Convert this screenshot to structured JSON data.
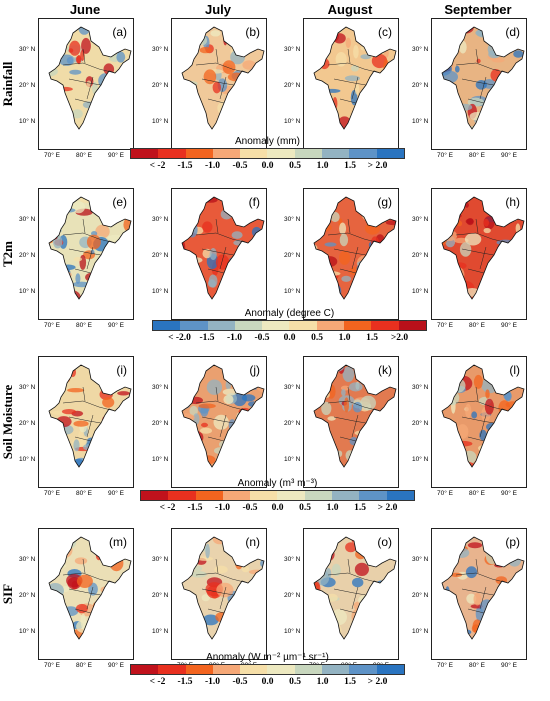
{
  "columns": [
    "June",
    "July",
    "August",
    "September"
  ],
  "rows": [
    {
      "label": "Rainfall",
      "panels": [
        "(a)",
        "(b)",
        "(c)",
        "(d)"
      ],
      "anomaly": "Anomaly (mm)",
      "palette": [
        "#c0121c",
        "#e8301f",
        "#f3641f",
        "#f6a877",
        "#f6dfa8",
        "#ede9c0",
        "#c8d7be",
        "#93b3c2",
        "#5e93c7",
        "#2a74c0"
      ],
      "ticks": [
        "< -2",
        "-1.5",
        "-1.0",
        "-0.5",
        "0.0",
        "0.5",
        "1.0",
        "1.5",
        "> 2.0"
      ]
    },
    {
      "label": "T2m",
      "panels": [
        "(e)",
        "(f)",
        "(g)",
        "(h)"
      ],
      "anomaly": "Anomaly (degree C)",
      "palette": [
        "#2a74c0",
        "#5e93c7",
        "#93b3c2",
        "#c8d7be",
        "#ede9c0",
        "#f6dfa8",
        "#f6a877",
        "#f3641f",
        "#e8301f",
        "#b8101a"
      ],
      "ticks": [
        "< -2.0",
        "-1.5",
        "-1.0",
        "-0.5",
        "0.0",
        "0.5",
        "1.0",
        "1.5",
        ">2.0"
      ]
    },
    {
      "label": "Soil Moisture",
      "panels": [
        "(i)",
        "(j)",
        "(k)",
        "(l)"
      ],
      "anomaly": "Anomaly (m³ m⁻³)",
      "palette": [
        "#c0121c",
        "#e8301f",
        "#f3641f",
        "#f6a877",
        "#f6dfa8",
        "#ede9c0",
        "#c8d7be",
        "#93b3c2",
        "#5e93c7",
        "#2a74c0"
      ],
      "ticks": [
        "< -2",
        "-1.5",
        "-1.0",
        "-0.5",
        "0.0",
        "0.5",
        "1.0",
        "1.5",
        "> 2.0"
      ]
    },
    {
      "label": "SIF",
      "panels": [
        "(m)",
        "(n)",
        "(o)",
        "(p)"
      ],
      "anomaly": "Anomaly (W m⁻² µm⁻¹ sr⁻¹)",
      "palette": [
        "#c0121c",
        "#e8301f",
        "#f3641f",
        "#f6a877",
        "#f6dfa8",
        "#ede9c0",
        "#c8d7be",
        "#93b3c2",
        "#5e93c7",
        "#2a74c0"
      ],
      "ticks": [
        "< -2",
        "-1.5",
        "-1.0",
        "-0.5",
        "0.0",
        "0.5",
        "1.0",
        "1.5",
        "> 2.0"
      ]
    }
  ],
  "lat_ticks": [
    "30° N",
    "20° N",
    "10° N"
  ],
  "lon_ticks": [
    "70° E",
    "80° E",
    "90° E"
  ],
  "map_tints": [
    [
      "#f0dca8",
      "#f0c99a",
      "#f2c890",
      "#e8b483"
    ],
    [
      "#e8e2b8",
      "#e85a3a",
      "#e6643f",
      "#e04a30"
    ],
    [
      "#efd8a5",
      "#eaa070",
      "#e27a50",
      "#e89a6a"
    ],
    [
      "#ebdfb6",
      "#e9d3ad",
      "#e8d0aa",
      "#e8b48e"
    ]
  ]
}
